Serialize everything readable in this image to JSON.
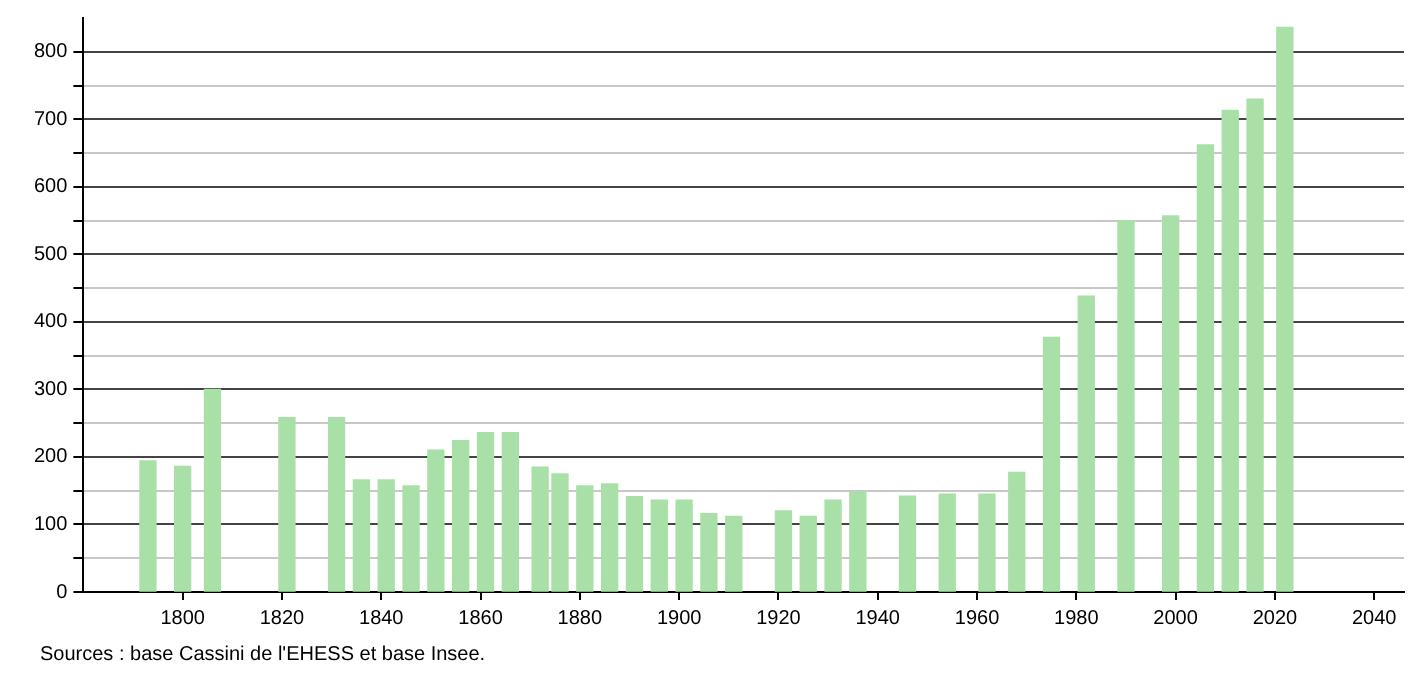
{
  "chart_data": {
    "type": "bar",
    "x": [
      1793,
      1800,
      1806,
      1821,
      1831,
      1836,
      1841,
      1846,
      1851,
      1856,
      1861,
      1866,
      1872,
      1876,
      1881,
      1886,
      1891,
      1896,
      1901,
      1906,
      1911,
      1921,
      1926,
      1931,
      1936,
      1946,
      1954,
      1962,
      1968,
      1975,
      1982,
      1990,
      1999,
      2006,
      2011,
      2016,
      2022
    ],
    "values": [
      194,
      186,
      300,
      258,
      258,
      166,
      166,
      157,
      210,
      224,
      236,
      236,
      185,
      175,
      157,
      160,
      141,
      136,
      136,
      116,
      112,
      120,
      112,
      136,
      148,
      142,
      145,
      145,
      177,
      377,
      438,
      550,
      557,
      662,
      713,
      730,
      836
    ],
    "color": "#a8e0a8",
    "xlim": [
      1780,
      2046
    ],
    "xticks": [
      1800,
      1820,
      1840,
      1860,
      1880,
      1900,
      1920,
      1940,
      1960,
      1980,
      2000,
      2020,
      2040
    ],
    "ylim": [
      0,
      850
    ],
    "yticks": [
      0,
      {
        "value": 50,
        "label": null
      },
      100,
      {
        "value": 150,
        "label": null
      },
      200,
      {
        "value": 250,
        "label": null
      },
      300,
      {
        "value": 350,
        "label": null
      },
      400,
      {
        "value": 450,
        "label": null
      },
      500,
      {
        "value": 550,
        "label": null
      },
      600,
      {
        "value": 650,
        "label": null
      },
      700,
      {
        "value": 750,
        "label": null
      },
      800
    ],
    "grid": "y",
    "annotations": [
      "Sources : base Cassini de l'EHESS et base Insee."
    ]
  }
}
